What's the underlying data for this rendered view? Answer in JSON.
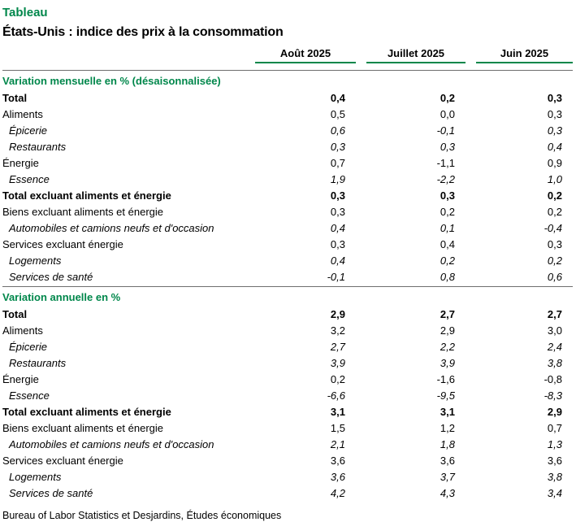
{
  "header": {
    "kicker": "Tableau",
    "title": "États-Unis : indice des prix à la consommation"
  },
  "chart_data": {
    "type": "table",
    "title": "États-Unis : indice des prix à la consommation",
    "columns": [
      "Août 2025",
      "Juillet 2025",
      "Juin 2025"
    ],
    "sections": [
      {
        "title": "Variation mensuelle en % (désaisonnalisée)",
        "rows": [
          {
            "label": "Total",
            "style": "bold",
            "values": [
              "0,4",
              "0,2",
              "0,3"
            ]
          },
          {
            "label": "Aliments",
            "style": "normal",
            "values": [
              "0,5",
              "0,0",
              "0,3"
            ]
          },
          {
            "label": "Épicerie",
            "style": "italic",
            "values": [
              "0,6",
              "-0,1",
              "0,3"
            ]
          },
          {
            "label": "Restaurants",
            "style": "italic",
            "values": [
              "0,3",
              "0,3",
              "0,4"
            ]
          },
          {
            "label": "Énergie",
            "style": "normal",
            "values": [
              "0,7",
              "-1,1",
              "0,9"
            ]
          },
          {
            "label": "Essence",
            "style": "italic",
            "values": [
              "1,9",
              "-2,2",
              "1,0"
            ]
          },
          {
            "label": "Total excluant aliments et énergie",
            "style": "bold",
            "values": [
              "0,3",
              "0,3",
              "0,2"
            ]
          },
          {
            "label": "Biens excluant aliments et énergie",
            "style": "normal",
            "values": [
              "0,3",
              "0,2",
              "0,2"
            ]
          },
          {
            "label": "Automobiles et camions neufs et d'occasion",
            "style": "italic",
            "values": [
              "0,4",
              "0,1",
              "-0,4"
            ]
          },
          {
            "label": "Services excluant énergie",
            "style": "normal",
            "values": [
              "0,3",
              "0,4",
              "0,3"
            ]
          },
          {
            "label": "Logements",
            "style": "italic",
            "values": [
              "0,4",
              "0,2",
              "0,2"
            ]
          },
          {
            "label": "Services de santé",
            "style": "italic",
            "values": [
              "-0,1",
              "0,8",
              "0,6"
            ]
          }
        ]
      },
      {
        "title": "Variation annuelle en %",
        "rows": [
          {
            "label": "Total",
            "style": "bold",
            "values": [
              "2,9",
              "2,7",
              "2,7"
            ]
          },
          {
            "label": "Aliments",
            "style": "normal",
            "values": [
              "3,2",
              "2,9",
              "3,0"
            ]
          },
          {
            "label": "Épicerie",
            "style": "italic",
            "values": [
              "2,7",
              "2,2",
              "2,4"
            ]
          },
          {
            "label": "Restaurants",
            "style": "italic",
            "values": [
              "3,9",
              "3,9",
              "3,8"
            ]
          },
          {
            "label": "Énergie",
            "style": "normal",
            "values": [
              "0,2",
              "-1,6",
              "-0,8"
            ]
          },
          {
            "label": "Essence",
            "style": "italic",
            "values": [
              "-6,6",
              "-9,5",
              "-8,3"
            ]
          },
          {
            "label": "Total excluant aliments et énergie",
            "style": "bold",
            "values": [
              "3,1",
              "3,1",
              "2,9"
            ]
          },
          {
            "label": "Biens excluant aliments et énergie",
            "style": "normal",
            "values": [
              "1,5",
              "1,2",
              "0,7"
            ]
          },
          {
            "label": "Automobiles et camions neufs et d'occasion",
            "style": "italic",
            "values": [
              "2,1",
              "1,8",
              "1,3"
            ]
          },
          {
            "label": "Services excluant énergie",
            "style": "normal",
            "values": [
              "3,6",
              "3,6",
              "3,6"
            ]
          },
          {
            "label": "Logements",
            "style": "italic",
            "values": [
              "3,6",
              "3,7",
              "3,8"
            ]
          },
          {
            "label": "Services de santé",
            "style": "italic",
            "values": [
              "4,2",
              "4,3",
              "3,4"
            ]
          }
        ]
      }
    ]
  },
  "footer": {
    "source": "Bureau of Labor Statistics et Desjardins, Études économiques"
  },
  "colors": {
    "accent_green": "#00874b",
    "divider_gray": "#6e6e6e",
    "text": "#000000",
    "background": "#ffffff"
  }
}
